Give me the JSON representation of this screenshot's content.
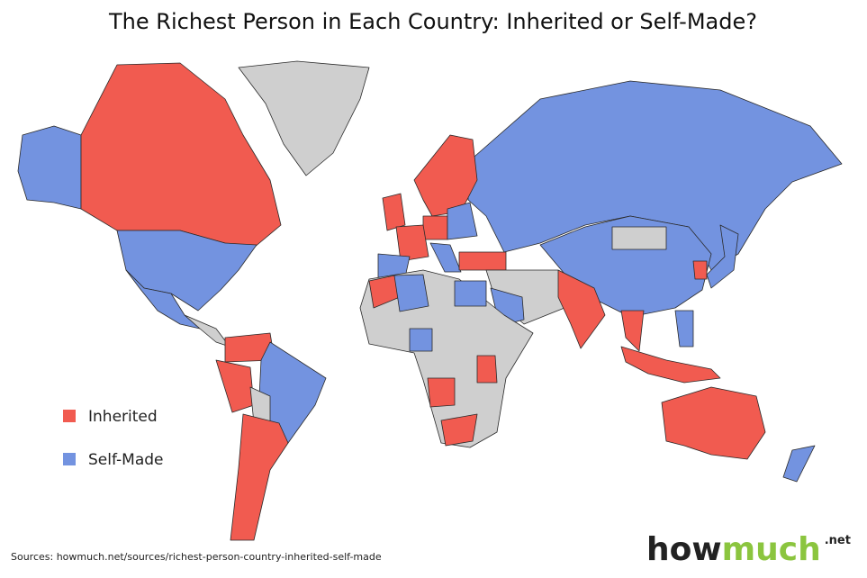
{
  "title": "The Richest Person in Each Country: Inherited or Self-Made?",
  "legend": [
    {
      "label": "Inherited",
      "color": "#f15b50"
    },
    {
      "label": "Self-Made",
      "color": "#7393e0"
    }
  ],
  "no_data_color": "#cfcfcf",
  "source": "Sources: howmuch.net/sources/richest-person-country-inherited-self-made",
  "logo": {
    "how": "how",
    "much": "much",
    "net": ".net"
  }
}
